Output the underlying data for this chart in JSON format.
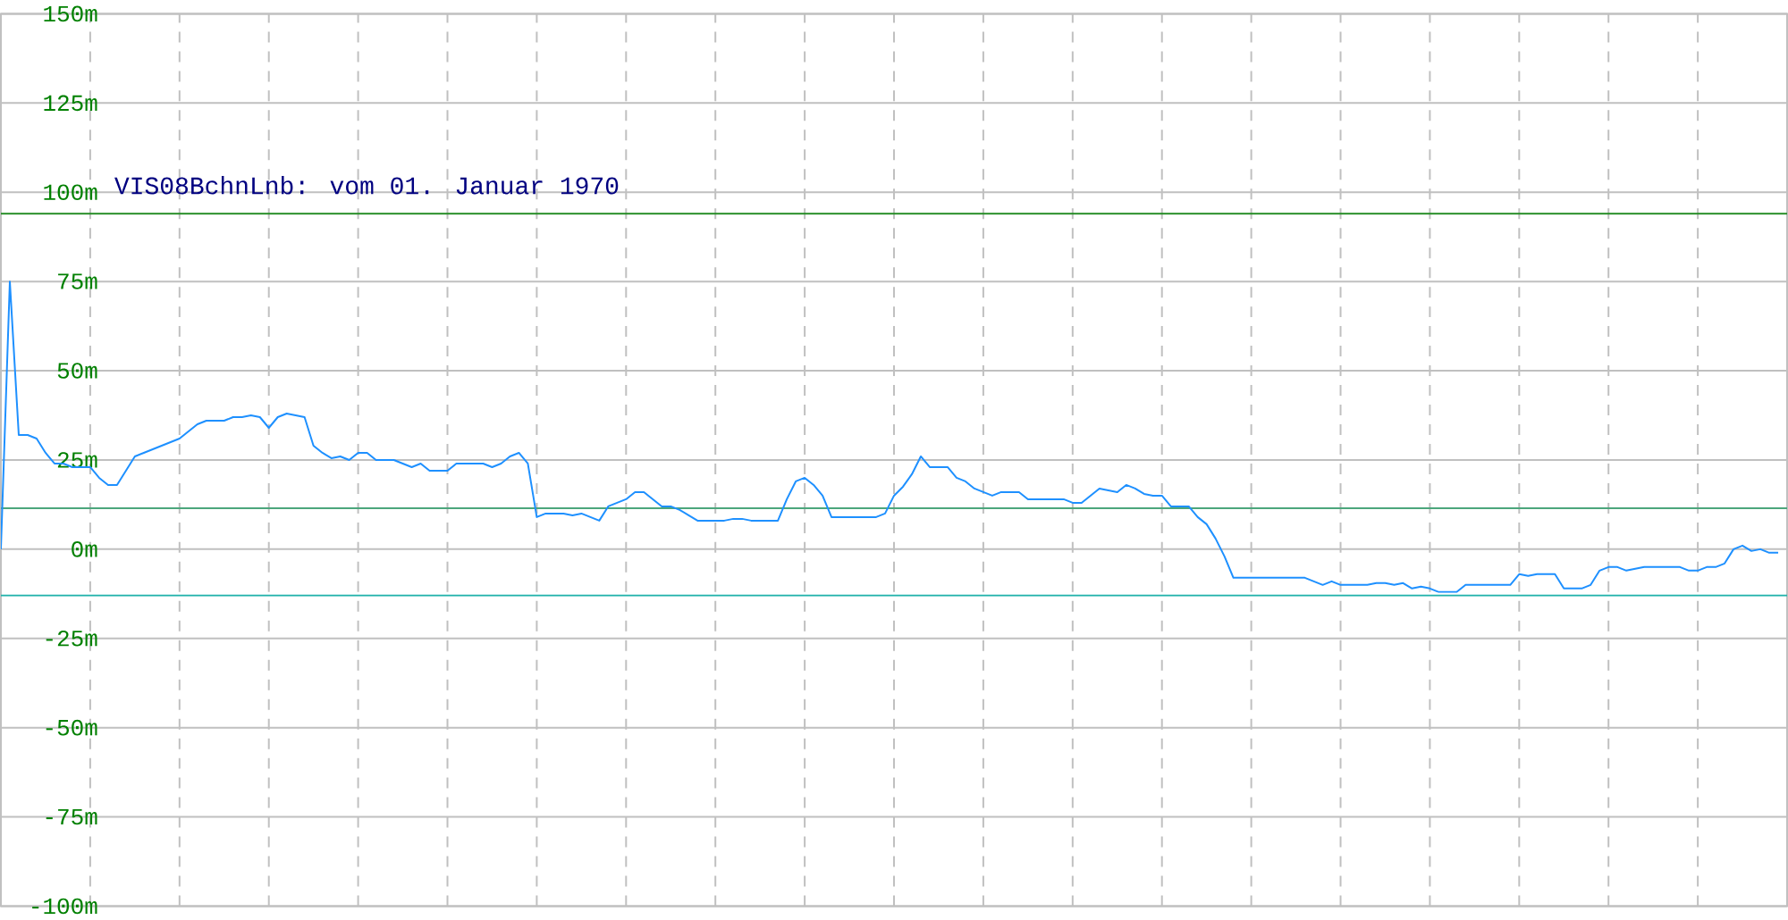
{
  "chart_data": {
    "type": "line",
    "title": "VIS08BchnLnb: vom 01. Januar 1970",
    "categories": [
      null,
      null,
      null,
      null,
      null,
      null,
      null,
      null,
      null,
      null,
      null,
      null,
      null,
      null,
      null,
      null,
      null,
      null,
      null,
      null,
      null,
      null,
      null,
      null,
      null,
      null,
      null,
      null,
      null,
      null,
      null,
      null,
      null,
      null,
      null,
      null,
      null,
      null,
      null,
      null,
      null,
      null,
      null,
      null,
      null,
      null,
      null,
      null,
      null,
      null,
      null,
      null,
      null,
      null,
      null,
      null,
      null,
      null,
      null,
      null,
      null,
      null,
      null,
      null,
      null,
      null,
      null,
      null,
      null,
      null,
      null,
      null,
      null,
      null,
      null,
      null,
      null,
      null,
      null,
      null,
      null,
      null,
      null,
      null,
      null,
      null,
      null,
      null,
      null,
      null,
      null,
      null,
      null,
      null,
      null,
      null,
      null,
      null,
      null,
      null,
      null,
      null,
      null,
      null,
      null,
      null,
      null,
      null,
      null,
      null,
      null,
      null,
      null,
      null,
      null,
      null,
      null,
      null,
      null,
      null,
      null,
      null,
      null,
      null,
      null,
      null,
      null,
      null,
      null,
      null,
      null,
      null,
      null,
      null,
      null,
      null,
      null,
      null,
      null,
      null,
      null,
      null,
      null,
      null,
      null,
      null,
      null,
      null,
      null,
      null,
      null,
      null,
      null,
      null,
      null,
      null,
      null,
      null,
      null,
      null,
      null,
      null,
      null,
      null,
      null,
      null,
      null,
      null,
      null,
      null,
      null,
      null,
      null,
      null,
      null,
      null,
      null,
      null,
      null,
      null,
      null,
      null,
      null,
      null,
      null,
      null,
      null,
      null,
      null,
      null,
      null,
      null,
      null,
      null,
      null,
      null,
      null,
      null,
      null,
      null
    ],
    "series": [
      {
        "color": "#1e90ff",
        "values": [
          0,
          75,
          32,
          32,
          31,
          27,
          24,
          24,
          23,
          23,
          23,
          20,
          18,
          18,
          22,
          26,
          27,
          28,
          29,
          30,
          31,
          33,
          35,
          36,
          36,
          36,
          37,
          37,
          37.5,
          37,
          34,
          37,
          38,
          37.5,
          37,
          29,
          27,
          25.5,
          26,
          25,
          27,
          27,
          25,
          25,
          25,
          24,
          23,
          24,
          22,
          22,
          22,
          24,
          24,
          24,
          24,
          23,
          24,
          26,
          27,
          24,
          9,
          10,
          10,
          10,
          9.5,
          10,
          9,
          8,
          12,
          13,
          14,
          16,
          16,
          14,
          12,
          12,
          11,
          9.5,
          8,
          8,
          8,
          8,
          8.5,
          8.5,
          8,
          8,
          8,
          8,
          14,
          19,
          20,
          18,
          15,
          9,
          9,
          9,
          9,
          9,
          9,
          10,
          15,
          17.5,
          21,
          26,
          23,
          23,
          23,
          20,
          19,
          17,
          16,
          15,
          16,
          16,
          16,
          14,
          14,
          14,
          14,
          14,
          13,
          13,
          15,
          17,
          16.5,
          16,
          18,
          17,
          15.5,
          15,
          15,
          12,
          12,
          12,
          9,
          7,
          3,
          -2,
          -8,
          -8,
          -8,
          -8,
          -8,
          -8,
          -8,
          -8,
          -8,
          -9,
          -10,
          -9,
          -10,
          -10,
          -10,
          -10,
          -9.5,
          -9.5,
          -10,
          -9.5,
          -11,
          -10.5,
          -11,
          -12,
          -12,
          -12,
          -10,
          -10,
          -10,
          -10,
          -10,
          -10,
          -7,
          -7.5,
          -7,
          -7,
          -7,
          -11,
          -11,
          -11,
          -10,
          -6,
          -5,
          -5,
          -6,
          -5.5,
          -5,
          -5,
          -5,
          -5,
          -5,
          -6,
          -6,
          -5,
          -5,
          -4,
          0,
          1,
          -0.5,
          0,
          -1,
          -1
        ]
      }
    ],
    "ylim": [
      -100,
      150
    ],
    "yticks": [
      {
        "value": -100,
        "label": "-100m"
      },
      {
        "value": -75,
        "label": "-75m"
      },
      {
        "value": -50,
        "label": "-50m"
      },
      {
        "value": -25,
        "label": "-25m"
      },
      {
        "value": 0,
        "label": "0m"
      },
      {
        "value": 25,
        "label": "25m"
      },
      {
        "value": 50,
        "label": "50m"
      },
      {
        "value": 75,
        "label": "75m"
      },
      {
        "value": 100,
        "label": "100m"
      },
      {
        "value": 125,
        "label": "125m"
      },
      {
        "value": 150,
        "label": "150m"
      }
    ],
    "grid": true,
    "ref_lines": [
      {
        "axis": "y",
        "value": 94,
        "color": "#228b22"
      },
      {
        "axis": "y",
        "value": 11.5,
        "color": "#4ca67c"
      },
      {
        "axis": "y",
        "value": -13,
        "color": "#20b2aa"
      }
    ]
  }
}
